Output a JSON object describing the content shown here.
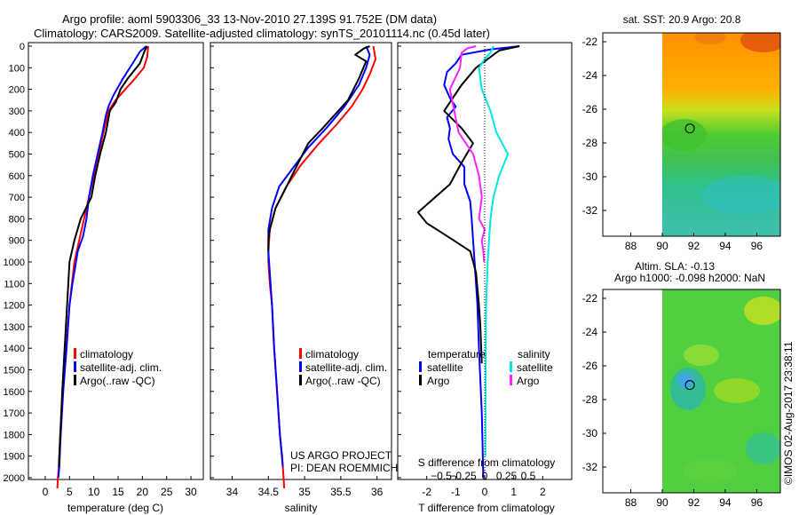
{
  "header": {
    "title_line1": "Argo profile: aoml 5903306_33 13-Nov-2010 27.139S 91.752E (DM data)",
    "title_line2": "Climatology: CARS2009. Satellite-adjusted climatology: synTS_20101114.nc (0.45d later)"
  },
  "colors": {
    "climatology": "#ff0000",
    "satellite": "#0000ff",
    "argo": "#000000",
    "salinity_satellite": "#00e5e5",
    "salinity_argo": "#ff22ff"
  },
  "depth_axis": {
    "range": [
      0,
      2050
    ],
    "ticks": [
      0,
      100,
      200,
      300,
      400,
      500,
      600,
      700,
      800,
      900,
      1000,
      1100,
      1200,
      1300,
      1400,
      1500,
      1600,
      1700,
      1800,
      1900,
      2000
    ]
  },
  "chart_data": [
    {
      "id": "temperature",
      "type": "line",
      "xlabel": "temperature (deg C)",
      "xlim": [
        -2,
        32
      ],
      "xticks": [
        0,
        5,
        10,
        15,
        20,
        25,
        30
      ],
      "ylim": [
        0,
        2050
      ],
      "legend": [
        "climatology",
        "satellite-adj. clim.",
        "Argo(..raw -QC)"
      ],
      "series": [
        {
          "name": "climatology",
          "color": "#ff0000",
          "x": [
            21.2,
            21,
            20.3,
            18.5,
            16.5,
            14.5,
            13,
            12,
            11,
            10,
            9,
            8,
            7,
            6,
            5.5,
            5,
            4.3,
            3.6,
            3.1,
            2.8,
            2.6,
            2.5
          ],
          "y": [
            0,
            50,
            100,
            150,
            200,
            250,
            300,
            400,
            500,
            600,
            700,
            800,
            900,
            1000,
            1100,
            1200,
            1400,
            1600,
            1800,
            1950,
            2000,
            2050
          ]
        },
        {
          "name": "satellite",
          "color": "#0000ff",
          "x": [
            20.8,
            19.5,
            18,
            16,
            14,
            13,
            12.5,
            11.8,
            10.8,
            9.8,
            9,
            8.5,
            7.8,
            6.7,
            5.6,
            5,
            4.4,
            3.7,
            3.2,
            2.9,
            2.7
          ],
          "y": [
            0,
            25,
            80,
            150,
            230,
            280,
            320,
            400,
            500,
            600,
            700,
            800,
            880,
            950,
            1100,
            1200,
            1400,
            1600,
            1800,
            1950,
            2000
          ]
        },
        {
          "name": "argo",
          "color": "#000000",
          "x": [
            21,
            20.5,
            19.5,
            17,
            15.5,
            14.5,
            13.3,
            12.5,
            11.3,
            10.3,
            9.5,
            7.3,
            6,
            5,
            4.5,
            4,
            3.5,
            3.1,
            2.8
          ],
          "y": [
            0,
            20,
            80,
            150,
            200,
            260,
            300,
            400,
            500,
            600,
            700,
            800,
            900,
            1000,
            1200,
            1400,
            1600,
            1800,
            1950
          ]
        }
      ]
    },
    {
      "id": "salinity",
      "type": "line",
      "xlabel": "salinity",
      "xlim": [
        33.7,
        36.2
      ],
      "xticks": [
        34,
        34.5,
        35,
        35.5,
        36
      ],
      "xtick_labels": [
        "34",
        "34.5",
        "35",
        "35.5",
        "36"
      ],
      "ylim": [
        0,
        2050
      ],
      "legend": [
        "climatology",
        "satellite-adj. clim.",
        "Argo(..raw -QC)"
      ],
      "annotations": [
        "US ARGO PROJECT",
        "PI: DEAN ROEMMICH"
      ],
      "series": [
        {
          "name": "climatology",
          "color": "#ff0000",
          "x": [
            35.95,
            35.98,
            35.9,
            35.8,
            35.65,
            35.45,
            35.2,
            34.95,
            34.75,
            34.6,
            34.52,
            34.5,
            34.5,
            34.52,
            34.55,
            34.58,
            34.62,
            34.66,
            34.69,
            34.71,
            34.72
          ],
          "y": [
            0,
            60,
            130,
            200,
            280,
            360,
            450,
            550,
            650,
            750,
            850,
            950,
            1000,
            1100,
            1200,
            1400,
            1600,
            1800,
            1900,
            2000,
            2050
          ]
        },
        {
          "name": "satellite",
          "color": "#0000ff",
          "x": [
            35.85,
            35.9,
            35.85,
            35.75,
            35.55,
            35.3,
            35.05,
            34.85,
            34.65,
            34.55,
            34.5,
            34.5,
            34.52,
            34.55,
            34.58,
            34.62,
            34.66,
            34.7
          ],
          "y": [
            0,
            40,
            100,
            180,
            280,
            380,
            470,
            560,
            650,
            750,
            850,
            950,
            1050,
            1200,
            1400,
            1600,
            1800,
            1950
          ]
        },
        {
          "name": "argo",
          "color": "#000000",
          "x": [
            35.9,
            35.82,
            35.7,
            35.85,
            35.75,
            35.6,
            35.25,
            35.05,
            34.9,
            34.75,
            34.6,
            34.52,
            34.5,
            34.5
          ],
          "y": [
            0,
            10,
            40,
            70,
            150,
            250,
            380,
            450,
            550,
            650,
            750,
            850,
            900,
            950
          ]
        }
      ]
    },
    {
      "id": "difference",
      "type": "line",
      "xlabel": "T difference from climatology",
      "top_label": "S difference from climatology",
      "xlim": [
        -3,
        3
      ],
      "xticks": [
        -2,
        -1,
        0,
        1,
        2
      ],
      "xtick_labels": [
        "-2",
        "-1",
        "0",
        "1",
        "2"
      ],
      "sticks": [
        -1.5,
        -0.75,
        0,
        0.75,
        1.5
      ],
      "stick_labels": [
        "−0.5",
        "−0.25",
        "0",
        "0.25",
        "0.5"
      ],
      "ylim": [
        0,
        2050
      ],
      "legend": {
        "temperature_title": "temperature",
        "salinity_title": "salinity",
        "items": [
          "satellite",
          "Argo",
          "satellite",
          "Argo"
        ]
      },
      "series": [
        {
          "name": "temperature satellite",
          "color": "#0000ff",
          "x": [
            1.2,
            0.2,
            -0.8,
            -1,
            -1.3,
            -1.4,
            -1.2,
            -1,
            -1.3,
            -1.2,
            -1.25,
            -1.1,
            -0.7,
            -0.7,
            -0.5,
            -0.45,
            -0.4,
            -0.35,
            -0.3,
            -0.25,
            -0.2,
            -0.1,
            -0.05
          ],
          "y": [
            0,
            15,
            40,
            80,
            120,
            180,
            240,
            280,
            330,
            380,
            430,
            500,
            560,
            640,
            720,
            800,
            900,
            1000,
            1100,
            1200,
            1400,
            1700,
            2000
          ]
        },
        {
          "name": "temperature argo",
          "color": "#000000",
          "x": [
            1.2,
            0.5,
            0.1,
            -0.3,
            -0.8,
            -1.4,
            -0.8,
            -0.4,
            -0.8,
            -1.2,
            -2.3,
            -2.0,
            -1.3,
            -0.5,
            -0.3,
            -0.2,
            -0.15,
            -0.1
          ],
          "y": [
            0,
            20,
            60,
            100,
            180,
            300,
            380,
            450,
            540,
            640,
            770,
            820,
            880,
            950,
            1050,
            1200,
            1300,
            1470
          ]
        },
        {
          "name": "salinity satellite",
          "color": "#00e5e5",
          "x": [
            0.3,
            0.2,
            0,
            -0.2,
            -0.1,
            0.2,
            0.4,
            0.8,
            0.5,
            0.3,
            0.2,
            0.1,
            0.05,
            0.03,
            0.02
          ],
          "y": [
            0,
            30,
            60,
            100,
            200,
            300,
            400,
            500,
            600,
            700,
            800,
            1000,
            1200,
            1500,
            1900
          ]
        },
        {
          "name": "salinity argo",
          "color": "#ff22ff",
          "x": [
            -0.3,
            -0.6,
            -0.8,
            -0.85,
            -1.2,
            -0.9,
            -0.4,
            -0.2,
            -0.1,
            -0.2,
            0,
            -0.1,
            -0.05,
            -0.02
          ],
          "y": [
            0,
            10,
            30,
            100,
            200,
            400,
            500,
            600,
            700,
            800,
            850,
            900,
            950,
            1000
          ]
        }
      ]
    }
  ],
  "map_sst": {
    "title": "sat. SST: 20.9 Argo: 20.8",
    "xticks": [
      88,
      90,
      92,
      94,
      96
    ],
    "yticks": [
      -22,
      -24,
      -26,
      -28,
      -30,
      -32
    ],
    "marker": {
      "lon": 91.752,
      "lat": -27.139
    }
  },
  "map_sla": {
    "title_line1": "Altim. SLA: -0.13",
    "title_line2": "Argo h1000: -0.098 h2000: NaN",
    "xticks": [
      88,
      90,
      92,
      94,
      96
    ],
    "yticks": [
      -22,
      -24,
      -26,
      -28,
      -30,
      -32
    ],
    "marker": {
      "lon": 91.752,
      "lat": -27.139
    }
  },
  "footer": {
    "credit": "©IMOS 02-Aug-2017 23:38:11"
  }
}
